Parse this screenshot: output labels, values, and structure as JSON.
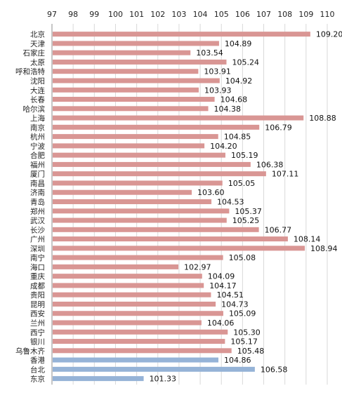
{
  "chart_data": {
    "type": "bar",
    "orientation": "horizontal",
    "xlim": [
      97,
      110
    ],
    "xticks": [
      "97",
      "98",
      "99",
      "100",
      "101",
      "102",
      "103",
      "104",
      "105",
      "106",
      "107",
      "108",
      "109",
      "110"
    ],
    "grid": true,
    "colors": {
      "mainland": "#d99694",
      "other": "#95b3d7"
    },
    "categories": [
      "北京",
      "天津",
      "石家庄",
      "太原",
      "呼和浩特",
      "沈阳",
      "大连",
      "长春",
      "哈尔滨",
      "上海",
      "南京",
      "杭州",
      "宁波",
      "合肥",
      "福州",
      "厦门",
      "南昌",
      "济南",
      "青岛",
      "郑州",
      "武汉",
      "长沙",
      "广州",
      "深圳",
      "南宁",
      "海口",
      "重庆",
      "成都",
      "贵阳",
      "昆明",
      "西安",
      "兰州",
      "西宁",
      "银川",
      "乌鲁木齐",
      "香港",
      "台北",
      "东京"
    ],
    "values": [
      109.2,
      104.89,
      103.54,
      105.24,
      103.91,
      104.92,
      103.93,
      104.68,
      104.38,
      108.88,
      106.79,
      104.85,
      104.2,
      105.19,
      106.38,
      107.11,
      105.05,
      103.6,
      104.53,
      105.37,
      105.25,
      106.77,
      108.14,
      108.94,
      105.08,
      102.97,
      104.09,
      104.17,
      104.51,
      104.73,
      105.09,
      104.06,
      105.3,
      105.17,
      105.48,
      104.86,
      106.58,
      101.33
    ],
    "value_labels": [
      "109.20",
      "104.89",
      "103.54",
      "105.24",
      "103.91",
      "104.92",
      "103.93",
      "104.68",
      "104.38",
      "108.88",
      "106.79",
      "104.85",
      "104.20",
      "105.19",
      "106.38",
      "107.11",
      "105.05",
      "103.60",
      "104.53",
      "105.37",
      "105.25",
      "106.77",
      "108.14",
      "108.94",
      "105.08",
      "102.97",
      "104.09",
      "104.17",
      "104.51",
      "104.73",
      "105.09",
      "104.06",
      "105.30",
      "105.17",
      "105.48",
      "104.86",
      "106.58",
      "101.33"
    ],
    "group": [
      "mainland",
      "mainland",
      "mainland",
      "mainland",
      "mainland",
      "mainland",
      "mainland",
      "mainland",
      "mainland",
      "mainland",
      "mainland",
      "mainland",
      "mainland",
      "mainland",
      "mainland",
      "mainland",
      "mainland",
      "mainland",
      "mainland",
      "mainland",
      "mainland",
      "mainland",
      "mainland",
      "mainland",
      "mainland",
      "mainland",
      "mainland",
      "mainland",
      "mainland",
      "mainland",
      "mainland",
      "mainland",
      "mainland",
      "mainland",
      "mainland",
      "other",
      "other",
      "other"
    ]
  }
}
